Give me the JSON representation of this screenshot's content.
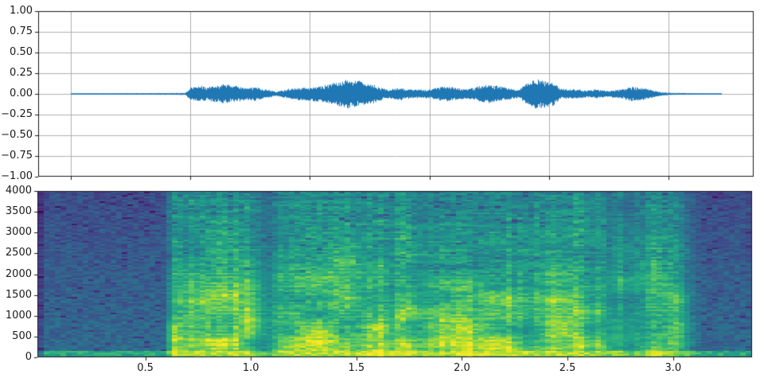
{
  "figure": {
    "background": "#ffffff",
    "title": "",
    "style": {
      "axes_background": "#ffffff",
      "spine_color": "#1a1a1a",
      "grid_color": "#b0b0b0",
      "tick_color": "#1a1a1a",
      "tick_label_color": "#1a1a1a",
      "waveform_color": "#1f77b4"
    }
  },
  "chart_data": [
    {
      "type": "line",
      "subtype": "audio-waveform",
      "title": "",
      "xlabel": "",
      "ylabel": "",
      "grid": true,
      "xlim": [
        -0.17,
        3.57
      ],
      "xticks": [
        0,
        0.625,
        1.25,
        1.875,
        2.5,
        3.125
      ],
      "xtick_labels_visible": false,
      "ylim": [
        -1,
        1
      ],
      "yticks": [
        1.0,
        0.75,
        0.5,
        0.25,
        0.0,
        -0.25,
        -0.5,
        -0.75,
        -1.0
      ],
      "ytick_labels": [
        "1.00",
        "0.75",
        "0.50",
        "0.25",
        "0.00",
        "−0.25",
        "−0.50",
        "−0.75",
        "−1.00"
      ],
      "series_color": "#1f77b4",
      "signal_span_seconds": [
        0.0,
        3.404
      ],
      "envelope": {
        "t": [
          0.0,
          0.4,
          0.6,
          0.625,
          0.67,
          0.72,
          0.8,
          0.86,
          0.925,
          0.975,
          1.0,
          1.075,
          1.14,
          1.21,
          1.33,
          1.4,
          1.45,
          1.51,
          1.58,
          1.655,
          1.72,
          1.79,
          1.87,
          1.935,
          1.975,
          2.07,
          2.12,
          2.18,
          2.29,
          2.34,
          2.39,
          2.43,
          2.52,
          2.56,
          2.6,
          2.65,
          2.7,
          2.745,
          2.8,
          2.87,
          2.933,
          2.985,
          3.04,
          3.09,
          3.14,
          3.25,
          3.404
        ],
        "amp": [
          0.008,
          0.009,
          0.012,
          0.07,
          0.095,
          0.08,
          0.115,
          0.095,
          0.07,
          0.088,
          0.06,
          0.025,
          0.06,
          0.075,
          0.1,
          0.14,
          0.18,
          0.15,
          0.11,
          0.05,
          0.075,
          0.05,
          0.05,
          0.085,
          0.085,
          0.055,
          0.08,
          0.11,
          0.07,
          0.05,
          0.13,
          0.17,
          0.15,
          0.06,
          0.055,
          0.055,
          0.04,
          0.055,
          0.035,
          0.05,
          0.085,
          0.075,
          0.045,
          0.02,
          0.012,
          0.009,
          0.006
        ]
      }
    },
    {
      "type": "heatmap",
      "subtype": "spectrogram",
      "title": "",
      "xlabel": "",
      "ylabel": "",
      "colormap": "viridis",
      "xlim": [
        -0.011,
        3.374
      ],
      "xticks": [
        0.5,
        1.0,
        1.5,
        2.0,
        2.5,
        3.0
      ],
      "xtick_labels": [
        "0.5",
        "1.0",
        "1.5",
        "2.0",
        "2.5",
        "3.0"
      ],
      "ylim": [
        0,
        4000
      ],
      "yticks": [
        0,
        500,
        1000,
        1500,
        2000,
        2500,
        3000,
        3500,
        4000
      ],
      "ytick_labels": [
        "0",
        "500",
        "1000",
        "1500",
        "2000",
        "2500",
        "3000",
        "3500",
        "4000"
      ],
      "freq_max_hz": 4000,
      "speech_span_seconds": [
        0.6,
        3.25
      ],
      "intensity_model": {
        "quiet_value": 0.35,
        "quiet_freq_falloff": 0.12,
        "active_base": 0.47,
        "active_low_freq_boost": 0.42,
        "bottom_band_hz": 140,
        "bottom_band_quiet_value": 0.6,
        "bottom_band_active_gain": 0.3,
        "activity_threshold": 0.012,
        "activity_scale": 0.05
      },
      "viridis_stops": [
        [
          0.0,
          "#440154"
        ],
        [
          0.1,
          "#482475"
        ],
        [
          0.2,
          "#414487"
        ],
        [
          0.3,
          "#355f8d"
        ],
        [
          0.4,
          "#2a788e"
        ],
        [
          0.5,
          "#21918c"
        ],
        [
          0.6,
          "#22a884"
        ],
        [
          0.7,
          "#44bf70"
        ],
        [
          0.8,
          "#7ad151"
        ],
        [
          0.9,
          "#bddf26"
        ],
        [
          1.0,
          "#fde725"
        ]
      ]
    }
  ]
}
